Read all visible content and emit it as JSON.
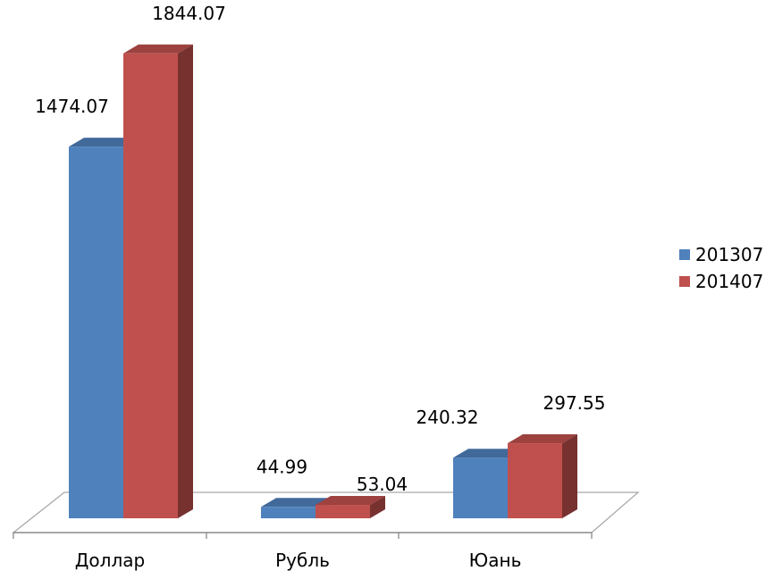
{
  "chart_data": {
    "type": "bar",
    "style": "3d-clustered-column",
    "categories": [
      "Доллар",
      "Рубль",
      "Юань"
    ],
    "series": [
      {
        "name": "201307",
        "values": [
          1474.07,
          44.99,
          240.32
        ],
        "color": "#4F81BD"
      },
      {
        "name": "201407",
        "values": [
          1844.07,
          53.04,
          297.55
        ],
        "color": "#C0504D"
      }
    ],
    "data_labels": true,
    "gridlines": false,
    "legend_position": "right"
  }
}
